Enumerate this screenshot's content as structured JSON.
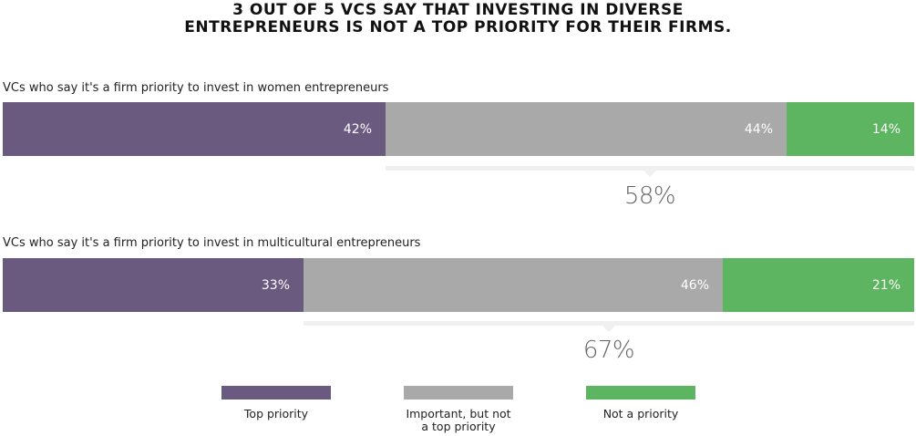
{
  "chart_data": {
    "type": "bar",
    "stacked": true,
    "orientation": "horizontal",
    "title": "3 OUT OF 5 VCS SAY THAT INVESTING IN DIVERSE ENTREPRENEURS IS NOT A TOP PRIORITY FOR THEIR FIRMS.",
    "title_lines": [
      "3 OUT OF 5 VCS SAY THAT INVESTING IN DIVERSE",
      "ENTREPRENEURS IS NOT A TOP PRIORITY FOR THEIR FIRMS."
    ],
    "unit": "%",
    "categories": [
      "VCs who say it's a firm priority to invest in women entrepreneurs",
      "VCs who say it's a firm priority to invest in multicultural entrepreneurs"
    ],
    "series": [
      {
        "name": "Top priority",
        "color": "#6a5a80",
        "values": [
          42,
          33
        ],
        "labels": [
          "42%",
          "33%"
        ]
      },
      {
        "name": "Important, but not a top priority",
        "name_lines": [
          "Important, but not",
          "a top priority"
        ],
        "color": "#a9a9a9",
        "values": [
          44,
          46
        ],
        "labels": [
          "44%",
          "46%"
        ]
      },
      {
        "name": "Not a priority",
        "color": "#5db562",
        "values": [
          14,
          21
        ],
        "labels": [
          "14%",
          "21%"
        ]
      }
    ],
    "annotations": [
      "58%",
      "67%"
    ],
    "legend_position": "bottom",
    "grid": false
  }
}
